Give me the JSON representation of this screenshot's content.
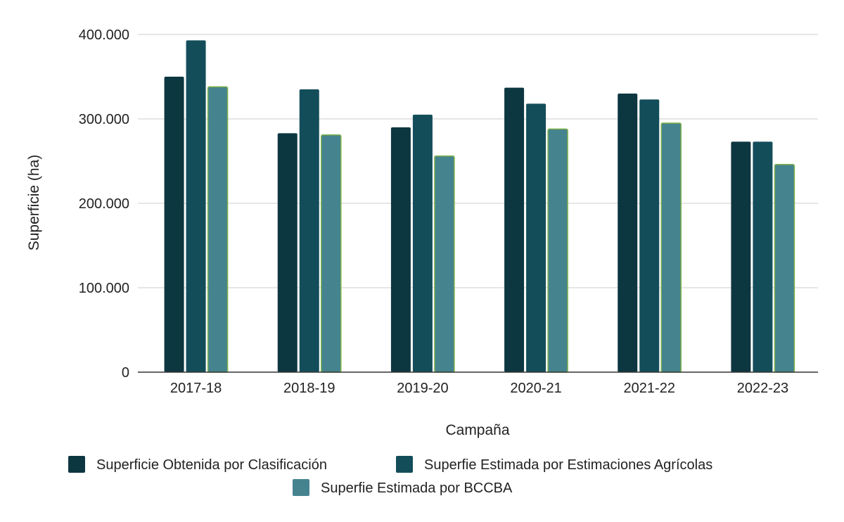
{
  "chart_data": {
    "type": "bar",
    "title": "",
    "xlabel": "Campaña",
    "ylabel": "Superficie (ha)",
    "ylim": [
      0,
      400000
    ],
    "y_ticks": [
      0,
      100000,
      200000,
      300000,
      400000
    ],
    "y_tick_labels": [
      "0",
      "100.000",
      "200.000",
      "300.000",
      "400.000"
    ],
    "grid": true,
    "legend_position": "bottom",
    "categories": [
      "2017-18",
      "2018-19",
      "2019-20",
      "2020-21",
      "2021-22",
      "2022-23"
    ],
    "series": [
      {
        "name": "Superficie Obtenida por Clasificación",
        "color": "#0d3740",
        "values": [
          350000,
          283000,
          290000,
          337000,
          330000,
          273000
        ]
      },
      {
        "name": "Superfie Estimada por Estimaciones Agrícolas",
        "color": "#144d5a",
        "values": [
          393000,
          335000,
          305000,
          318000,
          323000,
          273000
        ]
      },
      {
        "name": "Superfie Estimada por BCCBA",
        "color": "#45838f",
        "stroke": "#7fb24a",
        "values": [
          338000,
          281000,
          256000,
          288000,
          295000,
          246000
        ]
      }
    ]
  }
}
